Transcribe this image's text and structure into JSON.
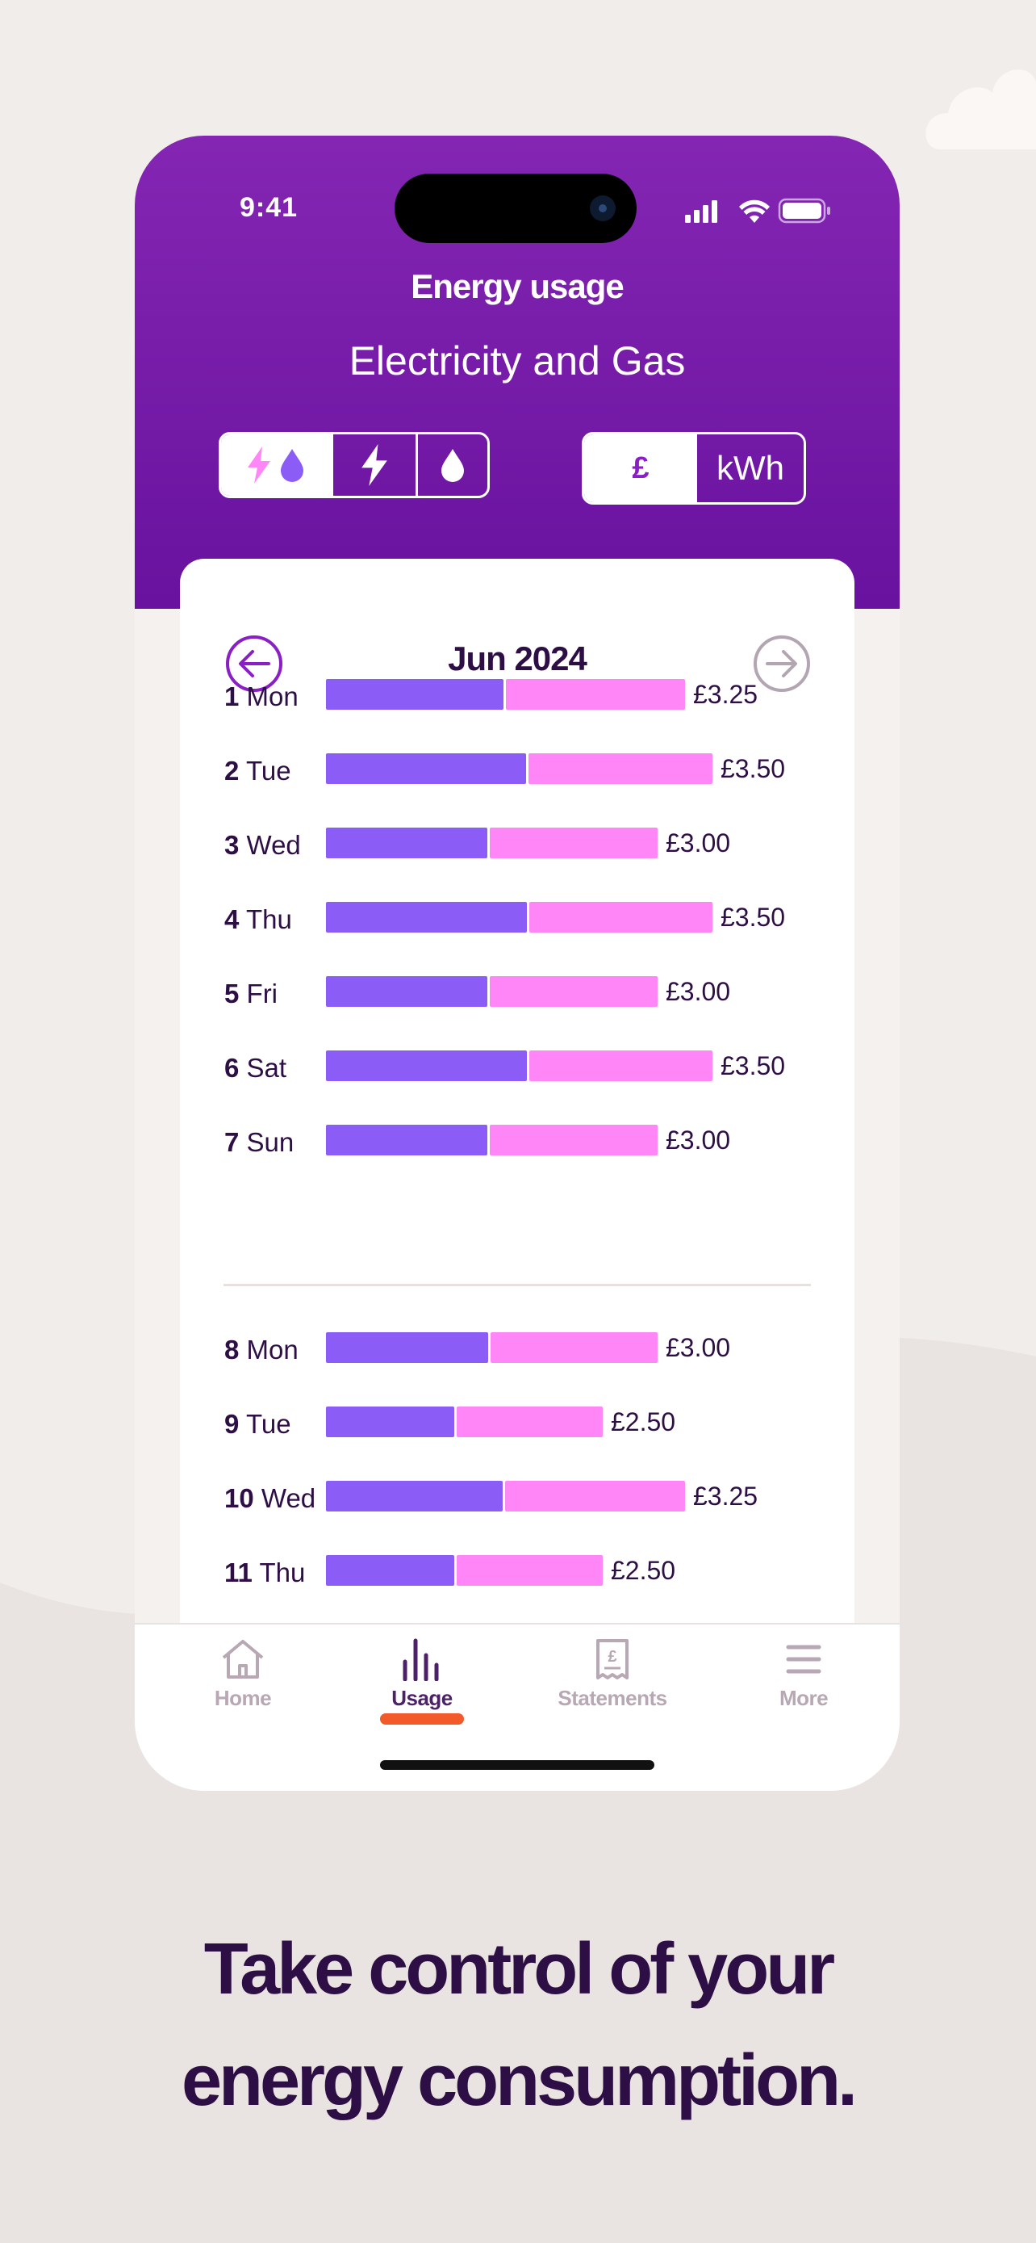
{
  "status_bar": {
    "time": "9:41"
  },
  "header": {
    "title": "Energy usage",
    "fuel_title": "Electricity and Gas",
    "fuel_options": [
      "electricity-and-gas",
      "electricity",
      "gas"
    ],
    "fuel_selected": "electricity-and-gas",
    "unit_options": [
      "£",
      "kWh"
    ],
    "unit_selected": "£"
  },
  "calendar": {
    "month": "Jun 2024"
  },
  "days": [
    {
      "num": "1",
      "name": "Mon",
      "elec": 1.62,
      "gas": 1.63,
      "value": "£3.25"
    },
    {
      "num": "2",
      "name": "Tue",
      "elec": 1.82,
      "gas": 1.68,
      "value": "£3.50"
    },
    {
      "num": "3",
      "name": "Wed",
      "elec": 1.47,
      "gas": 1.53,
      "value": "£3.00"
    },
    {
      "num": "4",
      "name": "Thu",
      "elec": 1.83,
      "gas": 1.67,
      "value": "£3.50"
    },
    {
      "num": "5",
      "name": "Fri",
      "elec": 1.47,
      "gas": 1.53,
      "value": "£3.00"
    },
    {
      "num": "6",
      "name": "Sat",
      "elec": 1.83,
      "gas": 1.67,
      "value": "£3.50"
    },
    {
      "num": "7",
      "name": "Sun",
      "elec": 1.47,
      "gas": 1.53,
      "value": "£3.00"
    },
    {
      "num": "8",
      "name": "Mon",
      "elec": 1.48,
      "gas": 1.52,
      "value": "£3.00"
    },
    {
      "num": "9",
      "name": "Tue",
      "elec": 1.17,
      "gas": 1.33,
      "value": "£2.50"
    },
    {
      "num": "10",
      "name": "Wed",
      "elec": 1.61,
      "gas": 1.64,
      "value": "£3.25"
    },
    {
      "num": "11",
      "name": "Thu",
      "elec": 1.17,
      "gas": 1.33,
      "value": "£2.50"
    }
  ],
  "tabs": [
    {
      "label": "Home",
      "icon": "home-icon",
      "active": false
    },
    {
      "label": "Usage",
      "icon": "usage-chart-icon",
      "active": true
    },
    {
      "label": "Statements",
      "icon": "statement-icon",
      "active": false
    },
    {
      "label": "More",
      "icon": "menu-icon",
      "active": false
    }
  ],
  "tagline": {
    "line1": "Take control of your",
    "line2": "energy consumption."
  },
  "colors": {
    "header_purple": "#7a1fb0",
    "electricity_bar": "#8c5cf7",
    "gas_bar": "#ff86f7",
    "active_tab_indicator": "#f25a2a",
    "text_dark": "#2e0f45"
  }
}
